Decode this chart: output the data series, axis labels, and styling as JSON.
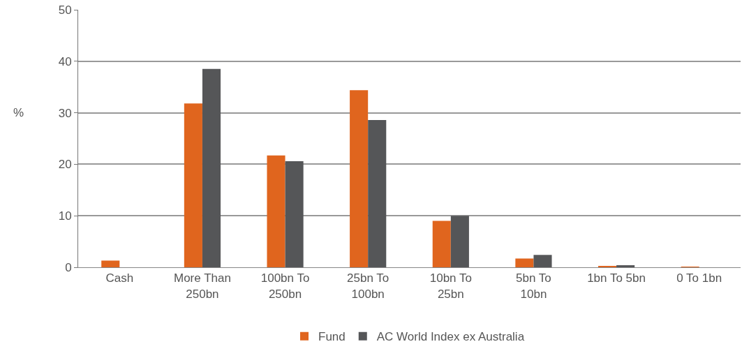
{
  "chart_data": {
    "type": "bar",
    "ylabel": "%",
    "categories": [
      "Cash",
      "More Than 250bn",
      "100bn To 250bn",
      "25bn To 100bn",
      "10bn To 25bn",
      "5bn To 10bn",
      "1bn To 5bn",
      "0 To 1bn"
    ],
    "series": [
      {
        "name": "Fund",
        "color": "#e0651e",
        "values": [
          1.3,
          31.8,
          21.7,
          34.4,
          9.0,
          1.7,
          0.2,
          0.1
        ]
      },
      {
        "name": "AC World Index ex Australia",
        "color": "#555658",
        "values": [
          null,
          38.5,
          20.6,
          28.6,
          10.0,
          2.4,
          0.4,
          null
        ]
      }
    ],
    "ylim": [
      0,
      50
    ],
    "yticks": [
      0,
      10,
      20,
      30,
      40,
      50
    ],
    "grid": "y",
    "legend": "bottom"
  }
}
